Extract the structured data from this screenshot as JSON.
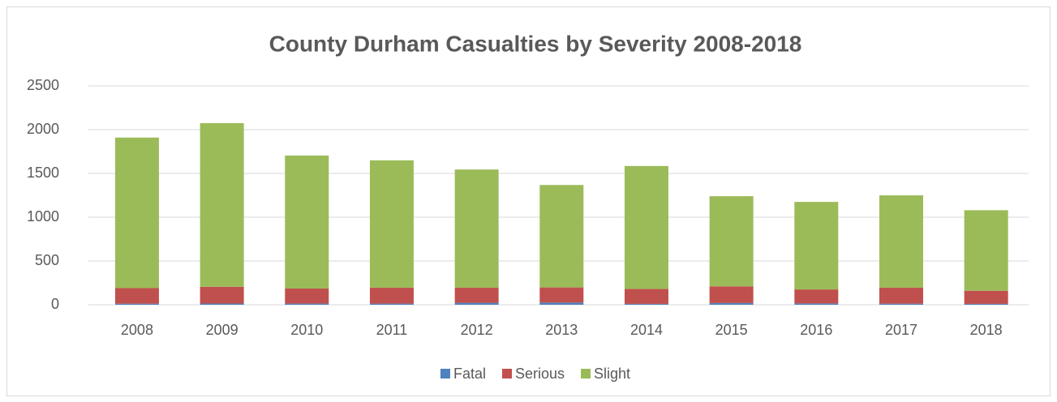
{
  "chart_data": {
    "type": "stacked_bar",
    "title": "County Durham Casualties by Severity 2008-2018",
    "categories": [
      "2008",
      "2009",
      "2010",
      "2011",
      "2012",
      "2013",
      "2014",
      "2015",
      "2016",
      "2017",
      "2018"
    ],
    "series": [
      {
        "name": "Fatal",
        "color": "#4f81bd",
        "values": [
          12,
          14,
          13,
          13,
          22,
          25,
          10,
          20,
          15,
          12,
          10
        ]
      },
      {
        "name": "Serious",
        "color": "#c0504d",
        "values": [
          178,
          191,
          172,
          182,
          173,
          173,
          170,
          190,
          160,
          183,
          150
        ]
      },
      {
        "name": "Slight",
        "color": "#9bbb59",
        "values": [
          1720,
          1870,
          1520,
          1455,
          1350,
          1170,
          1405,
          1030,
          1000,
          1055,
          920
        ]
      }
    ],
    "ylim": [
      0,
      2500
    ],
    "yticks": [
      0,
      500,
      1000,
      1500,
      2000,
      2500
    ],
    "grid": true,
    "legend": "bottom"
  }
}
